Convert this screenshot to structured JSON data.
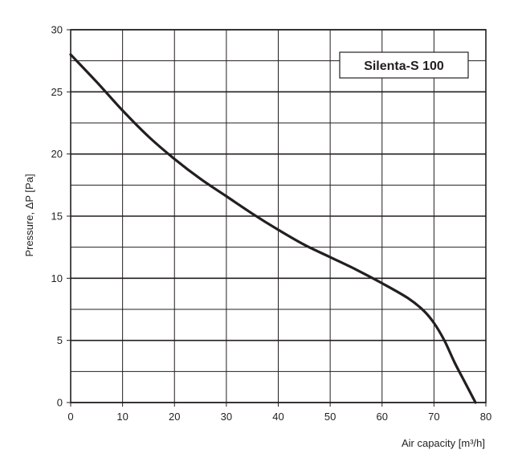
{
  "chart_data": {
    "type": "line",
    "title": "Silenta-S 100",
    "xlabel": "Air capacity [m³/h]",
    "ylabel": "Pressure, ΔP [Pa]",
    "xlim": [
      0,
      80
    ],
    "ylim": [
      0,
      30
    ],
    "x_ticks": [
      "0",
      "10",
      "20",
      "30",
      "40",
      "50",
      "60",
      "70",
      "80"
    ],
    "y_ticks": [
      "0",
      "5",
      "10",
      "15",
      "20",
      "25",
      "30"
    ],
    "grid": true,
    "minor_y_grid_step": 2.5,
    "legend_placement": "top-right",
    "series": [
      {
        "name": "Silenta-S 100",
        "color": "#231f20",
        "x": [
          0,
          5,
          10,
          15,
          20,
          25,
          30,
          35,
          40,
          45,
          50,
          55,
          60,
          65,
          68,
          70,
          72,
          74,
          76,
          78
        ],
        "y": [
          28,
          25.8,
          23.5,
          21.4,
          19.6,
          18,
          16.6,
          15.2,
          13.9,
          12.7,
          11.7,
          10.7,
          9.6,
          8.4,
          7.4,
          6.4,
          5.0,
          3.2,
          1.6,
          0
        ]
      }
    ]
  }
}
